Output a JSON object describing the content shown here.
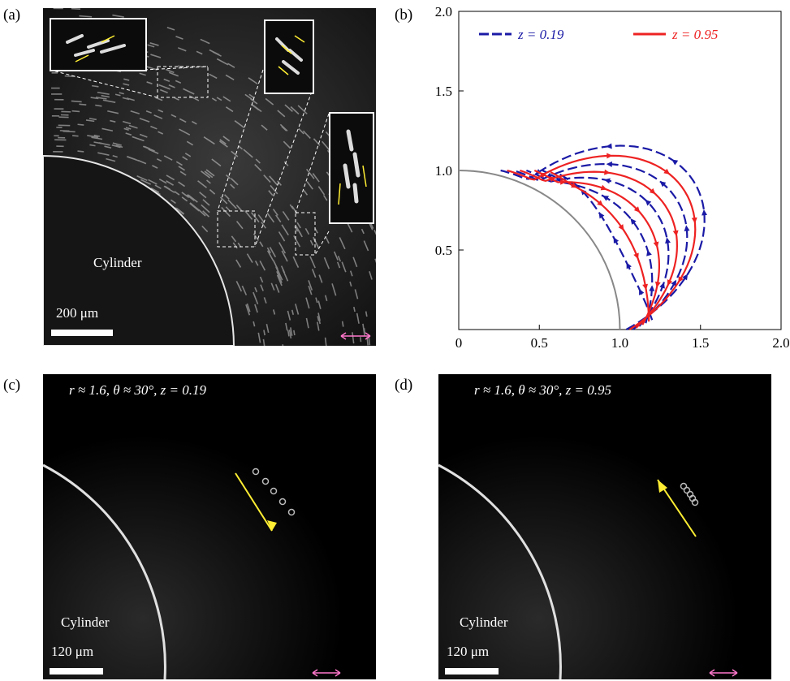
{
  "panels": {
    "a": {
      "label": "(a)",
      "cylinder_label": "Cylinder",
      "scale_label": "200 μm",
      "arrow_color": "#ffee33",
      "flow_symbol_color": "#ff77cc"
    },
    "c": {
      "label": "(c)",
      "condition": "r ≈ 1.6, θ ≈ 30°, z = 0.19",
      "cylinder_label": "Cylinder",
      "scale_label": "120 μm"
    },
    "d": {
      "label": "(d)",
      "condition": "r ≈ 1.6, θ ≈ 30°, z = 0.95",
      "cylinder_label": "Cylinder",
      "scale_label": "120 μm"
    }
  },
  "chart_data": {
    "type": "line",
    "label": "(b)",
    "xlim": [
      0,
      2.0
    ],
    "ylim": [
      0,
      2.0
    ],
    "xticks": [
      "0",
      "0.5",
      "1.0",
      "1.5",
      "2.0"
    ],
    "yticks": [
      "0.5",
      "1.0",
      "1.5",
      "2.0"
    ],
    "legend_placement": "top",
    "colors": {
      "z019": "#1a1aa6",
      "z095": "#ee2222",
      "cylinder": "#888888"
    },
    "cylinder": {
      "center": [
        0,
        0
      ],
      "radius": 1.0
    },
    "series": [
      {
        "name": "z = 0.19",
        "style": "dashed",
        "direction": "counterclockwise-outer",
        "loops": [
          {
            "near_root": [
              1.04,
              0.0
            ],
            "apex_radius": 1.73,
            "end": [
              0.26,
              1.0
            ]
          },
          {
            "near_root": [
              1.08,
              0.0
            ],
            "apex_radius": 1.58,
            "end": [
              0.34,
              1.0
            ]
          },
          {
            "near_root": [
              1.12,
              0.02
            ],
            "apex_radius": 1.43,
            "end": [
              0.42,
              1.0
            ]
          },
          {
            "near_root": [
              1.16,
              0.04
            ],
            "apex_radius": 1.28,
            "end": [
              0.52,
              1.0
            ]
          },
          {
            "near_root": [
              1.2,
              0.06
            ],
            "apex_radius": 1.12,
            "end": [
              0.62,
              0.98
            ]
          }
        ]
      },
      {
        "name": "z = 0.95",
        "style": "solid",
        "direction": "clockwise",
        "loops": [
          {
            "near_root": [
              1.06,
              0.0
            ],
            "apex_radius": 1.65,
            "end": [
              0.3,
              1.0
            ]
          },
          {
            "near_root": [
              1.1,
              0.01
            ],
            "apex_radius": 1.5,
            "end": [
              0.38,
              1.0
            ]
          },
          {
            "near_root": [
              1.14,
              0.03
            ],
            "apex_radius": 1.35,
            "end": [
              0.47,
              1.0
            ]
          },
          {
            "near_root": [
              1.18,
              0.05
            ],
            "apex_radius": 1.2,
            "end": [
              0.57,
              0.99
            ]
          }
        ]
      }
    ]
  }
}
